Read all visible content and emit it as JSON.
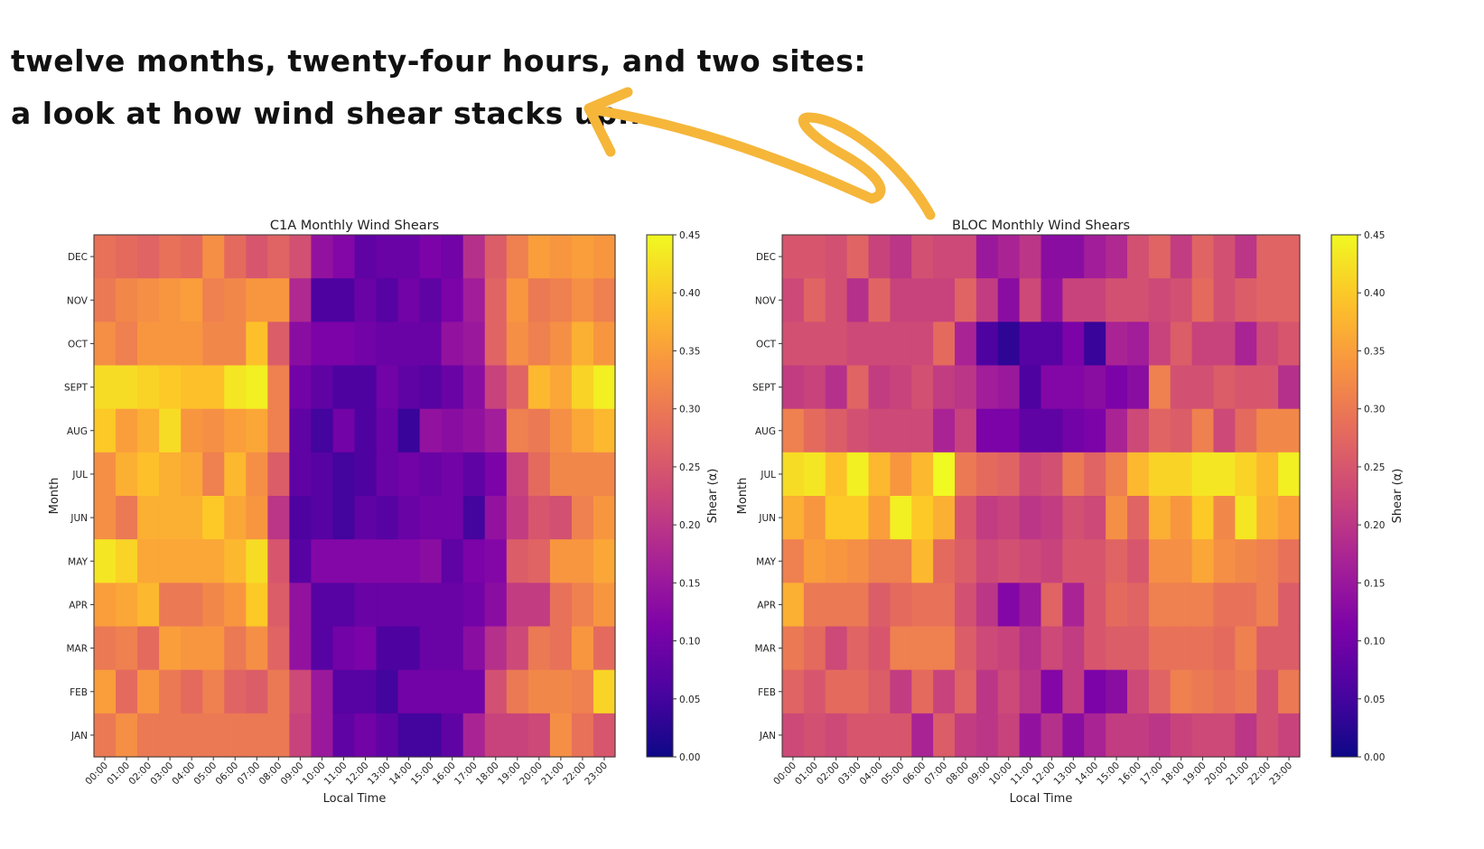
{
  "annotation": {
    "line1": "twelve months, twenty-four hours, and two sites:",
    "line2": "a look at how wind shear stacks up..."
  },
  "colors": {
    "arrow": "#f5b63a",
    "cmap": "plasma"
  },
  "chart_data": [
    {
      "type": "heatmap",
      "title": "C1A Monthly Wind Shears",
      "xlabel": "Local Time",
      "ylabel": "Month",
      "colorbar_label": "Shear (α)",
      "vmin": 0.0,
      "vmax": 0.45,
      "colorbar_ticks": [
        "0.00",
        "0.05",
        "0.10",
        "0.15",
        "0.20",
        "0.25",
        "0.30",
        "0.35",
        "0.40",
        "0.45"
      ],
      "x": [
        "00:00",
        "01:00",
        "02:00",
        "03:00",
        "04:00",
        "05:00",
        "06:00",
        "07:00",
        "08:00",
        "09:00",
        "10:00",
        "11:00",
        "12:00",
        "13:00",
        "14:00",
        "15:00",
        "16:00",
        "17:00",
        "18:00",
        "19:00",
        "20:00",
        "21:00",
        "22:00",
        "23:00"
      ],
      "y": [
        "DEC",
        "NOV",
        "OCT",
        "SEPT",
        "AUG",
        "JUL",
        "JUN",
        "MAY",
        "APR",
        "MAR",
        "FEB",
        "JAN"
      ],
      "values": [
        [
          0.29,
          0.28,
          0.27,
          0.29,
          0.28,
          0.33,
          0.28,
          0.25,
          0.27,
          0.24,
          0.14,
          0.12,
          0.08,
          0.09,
          0.09,
          0.11,
          0.1,
          0.19,
          0.26,
          0.31,
          0.35,
          0.34,
          0.35,
          0.34
        ],
        [
          0.3,
          0.32,
          0.33,
          0.34,
          0.35,
          0.31,
          0.32,
          0.34,
          0.34,
          0.18,
          0.06,
          0.06,
          0.09,
          0.07,
          0.1,
          0.08,
          0.11,
          0.16,
          0.27,
          0.34,
          0.3,
          0.31,
          0.33,
          0.31
        ],
        [
          0.33,
          0.31,
          0.34,
          0.34,
          0.34,
          0.32,
          0.32,
          0.39,
          0.26,
          0.13,
          0.11,
          0.11,
          0.1,
          0.09,
          0.09,
          0.09,
          0.14,
          0.15,
          0.27,
          0.33,
          0.31,
          0.33,
          0.37,
          0.34
        ],
        [
          0.42,
          0.42,
          0.41,
          0.4,
          0.39,
          0.39,
          0.43,
          0.44,
          0.31,
          0.1,
          0.08,
          0.06,
          0.06,
          0.1,
          0.08,
          0.07,
          0.09,
          0.13,
          0.22,
          0.27,
          0.38,
          0.36,
          0.41,
          0.44
        ],
        [
          0.4,
          0.35,
          0.37,
          0.42,
          0.34,
          0.33,
          0.35,
          0.36,
          0.31,
          0.08,
          0.05,
          0.1,
          0.06,
          0.09,
          0.04,
          0.14,
          0.13,
          0.14,
          0.16,
          0.31,
          0.3,
          0.33,
          0.36,
          0.38
        ],
        [
          0.33,
          0.37,
          0.39,
          0.37,
          0.36,
          0.31,
          0.38,
          0.33,
          0.26,
          0.08,
          0.07,
          0.05,
          0.06,
          0.09,
          0.1,
          0.09,
          0.1,
          0.08,
          0.11,
          0.22,
          0.28,
          0.32,
          0.32,
          0.32
        ],
        [
          0.33,
          0.3,
          0.37,
          0.37,
          0.37,
          0.4,
          0.36,
          0.34,
          0.2,
          0.06,
          0.07,
          0.05,
          0.08,
          0.07,
          0.09,
          0.1,
          0.1,
          0.05,
          0.14,
          0.21,
          0.25,
          0.24,
          0.31,
          0.34
        ],
        [
          0.43,
          0.41,
          0.36,
          0.36,
          0.36,
          0.36,
          0.38,
          0.42,
          0.25,
          0.07,
          0.12,
          0.12,
          0.12,
          0.12,
          0.12,
          0.13,
          0.08,
          0.11,
          0.12,
          0.26,
          0.27,
          0.34,
          0.34,
          0.36
        ],
        [
          0.35,
          0.36,
          0.38,
          0.3,
          0.3,
          0.32,
          0.34,
          0.4,
          0.26,
          0.14,
          0.07,
          0.07,
          0.09,
          0.09,
          0.09,
          0.09,
          0.09,
          0.1,
          0.13,
          0.21,
          0.21,
          0.29,
          0.31,
          0.34
        ],
        [
          0.3,
          0.31,
          0.28,
          0.35,
          0.34,
          0.34,
          0.3,
          0.33,
          0.27,
          0.14,
          0.07,
          0.1,
          0.11,
          0.06,
          0.06,
          0.09,
          0.09,
          0.13,
          0.19,
          0.23,
          0.3,
          0.29,
          0.34,
          0.28
        ],
        [
          0.35,
          0.28,
          0.34,
          0.3,
          0.28,
          0.31,
          0.27,
          0.26,
          0.3,
          0.23,
          0.15,
          0.07,
          0.07,
          0.05,
          0.1,
          0.1,
          0.1,
          0.1,
          0.24,
          0.3,
          0.32,
          0.32,
          0.31,
          0.41
        ],
        [
          0.3,
          0.33,
          0.3,
          0.3,
          0.3,
          0.3,
          0.3,
          0.3,
          0.3,
          0.22,
          0.15,
          0.08,
          0.1,
          0.08,
          0.05,
          0.05,
          0.08,
          0.17,
          0.22,
          0.22,
          0.23,
          0.33,
          0.29,
          0.25
        ]
      ]
    },
    {
      "type": "heatmap",
      "title": "BLOC Monthly Wind Shears",
      "xlabel": "Local Time",
      "ylabel": "Month",
      "colorbar_label": "Shear (α)",
      "vmin": 0.0,
      "vmax": 0.45,
      "colorbar_ticks": [
        "0.00",
        "0.05",
        "0.10",
        "0.15",
        "0.20",
        "0.25",
        "0.30",
        "0.35",
        "0.40",
        "0.45"
      ],
      "x": [
        "00:00",
        "01:00",
        "02:00",
        "03:00",
        "04:00",
        "05:00",
        "06:00",
        "07:00",
        "08:00",
        "09:00",
        "10:00",
        "11:00",
        "12:00",
        "13:00",
        "14:00",
        "15:00",
        "16:00",
        "17:00",
        "18:00",
        "19:00",
        "20:00",
        "21:00",
        "22:00",
        "23:00"
      ],
      "y": [
        "DEC",
        "NOV",
        "OCT",
        "SEPT",
        "AUG",
        "JUL",
        "JUN",
        "MAY",
        "APR",
        "MAR",
        "FEB",
        "JAN"
      ],
      "values": [
        [
          0.25,
          0.25,
          0.24,
          0.27,
          0.22,
          0.2,
          0.24,
          0.23,
          0.23,
          0.15,
          0.17,
          0.2,
          0.13,
          0.13,
          0.16,
          0.18,
          0.24,
          0.27,
          0.21,
          0.27,
          0.24,
          0.2,
          0.27,
          0.27
        ],
        [
          0.23,
          0.27,
          0.24,
          0.19,
          0.27,
          0.22,
          0.22,
          0.22,
          0.27,
          0.21,
          0.13,
          0.23,
          0.14,
          0.22,
          0.22,
          0.24,
          0.24,
          0.23,
          0.24,
          0.28,
          0.24,
          0.26,
          0.27,
          0.27
        ],
        [
          0.24,
          0.24,
          0.24,
          0.23,
          0.23,
          0.23,
          0.23,
          0.28,
          0.17,
          0.06,
          0.03,
          0.07,
          0.07,
          0.11,
          0.04,
          0.17,
          0.16,
          0.22,
          0.26,
          0.22,
          0.22,
          0.17,
          0.23,
          0.25
        ],
        [
          0.21,
          0.22,
          0.19,
          0.27,
          0.21,
          0.22,
          0.24,
          0.21,
          0.2,
          0.16,
          0.15,
          0.06,
          0.12,
          0.12,
          0.13,
          0.11,
          0.13,
          0.31,
          0.24,
          0.24,
          0.26,
          0.25,
          0.25,
          0.19
        ],
        [
          0.31,
          0.28,
          0.26,
          0.24,
          0.23,
          0.23,
          0.23,
          0.17,
          0.22,
          0.11,
          0.11,
          0.08,
          0.08,
          0.1,
          0.11,
          0.17,
          0.23,
          0.27,
          0.26,
          0.31,
          0.23,
          0.28,
          0.32,
          0.32
        ],
        [
          0.42,
          0.43,
          0.39,
          0.44,
          0.38,
          0.34,
          0.38,
          0.45,
          0.3,
          0.28,
          0.27,
          0.23,
          0.24,
          0.3,
          0.27,
          0.31,
          0.38,
          0.41,
          0.41,
          0.43,
          0.43,
          0.41,
          0.38,
          0.44
        ],
        [
          0.37,
          0.34,
          0.4,
          0.4,
          0.35,
          0.44,
          0.4,
          0.37,
          0.25,
          0.21,
          0.22,
          0.2,
          0.21,
          0.24,
          0.23,
          0.33,
          0.27,
          0.37,
          0.34,
          0.4,
          0.32,
          0.43,
          0.37,
          0.35
        ],
        [
          0.31,
          0.35,
          0.34,
          0.33,
          0.31,
          0.31,
          0.38,
          0.28,
          0.26,
          0.23,
          0.24,
          0.23,
          0.22,
          0.25,
          0.25,
          0.27,
          0.25,
          0.33,
          0.33,
          0.36,
          0.33,
          0.32,
          0.31,
          0.29
        ],
        [
          0.37,
          0.3,
          0.3,
          0.3,
          0.26,
          0.28,
          0.29,
          0.29,
          0.24,
          0.2,
          0.12,
          0.15,
          0.27,
          0.17,
          0.25,
          0.28,
          0.27,
          0.31,
          0.31,
          0.31,
          0.29,
          0.29,
          0.31,
          0.26
        ],
        [
          0.3,
          0.28,
          0.23,
          0.27,
          0.25,
          0.31,
          0.31,
          0.31,
          0.26,
          0.23,
          0.22,
          0.19,
          0.23,
          0.21,
          0.25,
          0.26,
          0.26,
          0.29,
          0.29,
          0.29,
          0.28,
          0.31,
          0.26,
          0.26
        ],
        [
          0.27,
          0.25,
          0.28,
          0.28,
          0.26,
          0.21,
          0.28,
          0.22,
          0.27,
          0.2,
          0.23,
          0.2,
          0.12,
          0.21,
          0.11,
          0.13,
          0.23,
          0.27,
          0.31,
          0.3,
          0.29,
          0.3,
          0.24,
          0.3
        ],
        [
          0.23,
          0.24,
          0.23,
          0.25,
          0.25,
          0.25,
          0.17,
          0.26,
          0.21,
          0.2,
          0.22,
          0.14,
          0.19,
          0.13,
          0.17,
          0.21,
          0.21,
          0.2,
          0.22,
          0.23,
          0.23,
          0.2,
          0.24,
          0.22
        ]
      ]
    }
  ]
}
